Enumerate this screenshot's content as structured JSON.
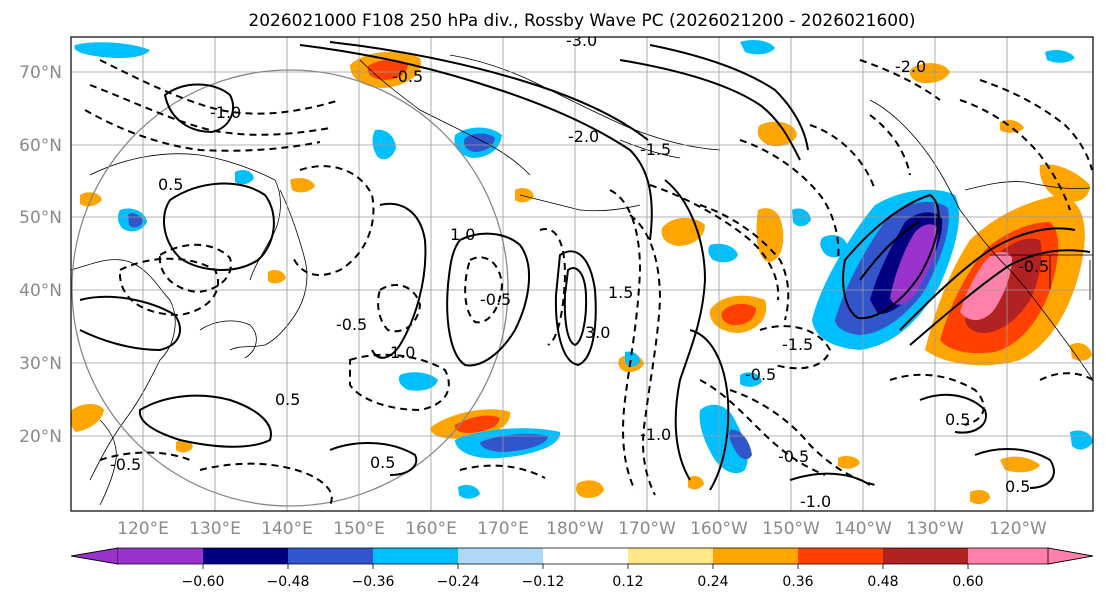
{
  "title": "2026021000 F108 250 hPa div., Rossby Wave PC (2026021200 - 2026021600)",
  "map": {
    "lat_labels": [
      "70°N",
      "60°N",
      "50°N",
      "40°N",
      "30°N",
      "20°N"
    ],
    "lon_labels": [
      "120°E",
      "130°E",
      "140°E",
      "150°E",
      "160°E",
      "170°E",
      "180°W",
      "170°W",
      "160°W",
      "150°W",
      "140°W",
      "130°W",
      "120°W"
    ],
    "contour_labels": [
      {
        "text": "-3.0"
      },
      {
        "text": "-0.5"
      },
      {
        "text": "-2.0"
      },
      {
        "text": "-1.0"
      },
      {
        "text": "-1.5"
      },
      {
        "text": "1.0"
      },
      {
        "text": "0.5"
      },
      {
        "text": "-0.5"
      },
      {
        "text": "3.0"
      },
      {
        "text": "1.5"
      },
      {
        "text": "-1.5"
      },
      {
        "text": "-0.5"
      },
      {
        "text": "-2.0"
      },
      {
        "text": "-1.0"
      },
      {
        "text": "0.5"
      },
      {
        "text": "-0.5"
      },
      {
        "text": "1.0"
      },
      {
        "text": "0.5"
      },
      {
        "text": "-0.5"
      },
      {
        "text": "-1.0"
      },
      {
        "text": "0.5"
      },
      {
        "text": "-0.5"
      },
      {
        "text": "-0.5"
      },
      {
        "text": "0.5"
      }
    ]
  },
  "colorbar": {
    "tick_labels": [
      "−0.60",
      "−0.48",
      "−0.36",
      "−0.24",
      "−0.12",
      "0.12",
      "0.24",
      "0.36",
      "0.48",
      "0.60"
    ],
    "colors": [
      "#9933cc",
      "#000080",
      "#3355cc",
      "#00bfff",
      "#add8f8",
      "#ffffff",
      "#ffe88a",
      "#ffa500",
      "#ff4000",
      "#b22222",
      "#ff80a8"
    ]
  },
  "colors": {
    "neg_strong": "#9933cc",
    "neg_dark": "#000080",
    "neg_mid": "#3355cc",
    "neg_light": "#00bfff",
    "pos_light": "#ffe88a",
    "pos_mid": "#ffa500",
    "pos_strong": "#ff4000",
    "pos_dark": "#b22222",
    "pos_max": "#ff80a8"
  }
}
